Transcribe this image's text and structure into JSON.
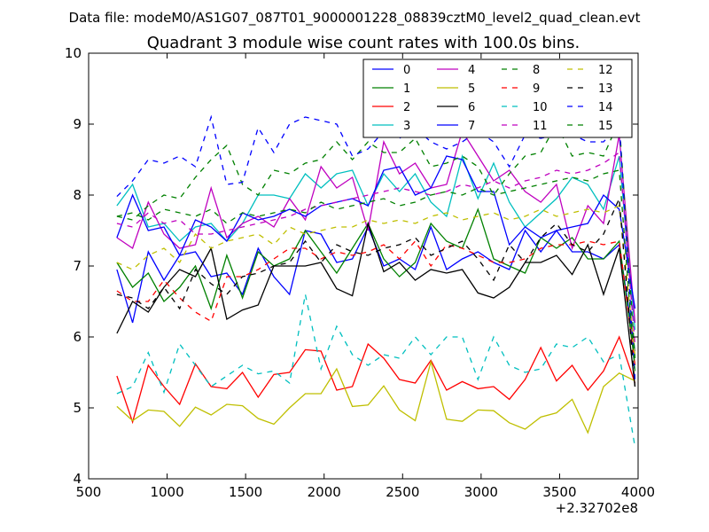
{
  "figure": {
    "suptitle": "Data file: modeM0/AS1G07_087T01_9000001228_08839cztM0_level2_quad_clean.evt",
    "offset_label": "+2.32702e8"
  },
  "chart_data": {
    "type": "line",
    "title": "Quadrant 3 module wise count rates with 100.0s bins.",
    "xlabel": "",
    "ylabel": "",
    "xlim": [
      500,
      4000
    ],
    "ylim": [
      4,
      10
    ],
    "x_offset": 232702000,
    "xticks": [
      "500",
      "1000",
      "1500",
      "2000",
      "2500",
      "3000",
      "3500",
      "4000"
    ],
    "yticks": [
      "4",
      "5",
      "6",
      "7",
      "8",
      "9",
      "10"
    ],
    "grid": false,
    "legend_position": "top-right",
    "x": [
      680,
      780,
      880,
      980,
      1080,
      1180,
      1280,
      1380,
      1480,
      1580,
      1680,
      1780,
      1880,
      1980,
      2080,
      2180,
      2280,
      2380,
      2480,
      2580,
      2680,
      2780,
      2880,
      2980,
      3080,
      3180,
      3280,
      3380,
      3480,
      3580,
      3680,
      3780,
      3880,
      3980
    ],
    "series": [
      {
        "name": "0",
        "color": "#0000ff",
        "dash": "solid",
        "values": [
          6.95,
          6.2,
          7.2,
          6.8,
          7.15,
          7.2,
          6.85,
          6.9,
          6.6,
          7.25,
          6.85,
          6.6,
          7.5,
          7.45,
          7.05,
          7.1,
          7.55,
          7.0,
          7.1,
          6.95,
          7.55,
          6.95,
          7.1,
          7.2,
          7.05,
          6.95,
          7.5,
          7.2,
          7.5,
          7.2,
          7.2,
          7.1,
          7.3,
          5.8
        ]
      },
      {
        "name": "1",
        "color": "#008000",
        "dash": "solid",
        "values": [
          7.05,
          6.7,
          6.9,
          6.5,
          6.7,
          7.0,
          6.4,
          7.15,
          6.55,
          7.2,
          7.0,
          7.1,
          7.5,
          7.2,
          6.9,
          7.25,
          7.6,
          7.1,
          6.85,
          7.05,
          7.6,
          7.35,
          7.25,
          7.8,
          7.1,
          7.0,
          6.9,
          7.4,
          7.25,
          7.4,
          7.1,
          7.1,
          7.35,
          5.6
        ]
      },
      {
        "name": "2",
        "color": "#ff0000",
        "dash": "solid",
        "values": [
          5.45,
          4.8,
          5.6,
          5.3,
          5.05,
          5.62,
          5.3,
          5.27,
          5.5,
          5.15,
          5.47,
          5.5,
          5.82,
          5.8,
          5.25,
          5.3,
          5.9,
          5.7,
          5.4,
          5.35,
          5.67,
          5.25,
          5.37,
          5.27,
          5.3,
          5.12,
          5.4,
          5.85,
          5.38,
          5.6,
          5.25,
          5.52,
          6.0,
          5.35
        ]
      },
      {
        "name": "3",
        "color": "#00bfbf",
        "dash": "solid",
        "values": [
          7.85,
          8.15,
          7.55,
          7.6,
          7.35,
          7.55,
          7.6,
          7.35,
          7.6,
          8.0,
          8.0,
          7.95,
          8.3,
          8.1,
          8.3,
          8.35,
          7.85,
          8.3,
          8.05,
          8.3,
          7.9,
          7.7,
          8.55,
          7.95,
          8.45,
          7.9,
          7.55,
          7.75,
          7.95,
          8.25,
          8.15,
          7.8,
          8.55,
          6.1
        ]
      },
      {
        "name": "4",
        "color": "#bf00bf",
        "dash": "solid",
        "values": [
          7.4,
          7.25,
          7.9,
          7.45,
          7.25,
          7.3,
          8.1,
          7.4,
          7.6,
          7.7,
          7.55,
          7.95,
          7.65,
          8.4,
          8.1,
          8.25,
          7.5,
          8.75,
          8.3,
          8.45,
          8.1,
          8.15,
          8.9,
          8.55,
          8.2,
          8.35,
          8.05,
          7.9,
          8.15,
          7.25,
          7.85,
          7.6,
          8.85,
          6.2
        ]
      },
      {
        "name": "5",
        "color": "#bfbf00",
        "dash": "solid",
        "values": [
          5.02,
          4.82,
          4.97,
          4.95,
          4.74,
          5.01,
          4.9,
          5.05,
          5.03,
          4.85,
          4.77,
          5.0,
          5.2,
          5.2,
          5.55,
          5.02,
          5.04,
          5.31,
          4.97,
          4.82,
          5.65,
          4.84,
          4.81,
          4.97,
          4.96,
          4.79,
          4.7,
          4.87,
          4.93,
          5.12,
          4.65,
          5.3,
          5.49,
          5.38
        ]
      },
      {
        "name": "6",
        "color": "#000000",
        "dash": "solid",
        "values": [
          6.05,
          6.5,
          6.35,
          6.7,
          6.95,
          6.85,
          7.25,
          6.25,
          6.38,
          6.45,
          7.0,
          7.0,
          7.0,
          7.05,
          6.68,
          6.58,
          7.6,
          6.92,
          7.05,
          6.8,
          6.95,
          6.9,
          6.95,
          6.62,
          6.55,
          6.7,
          7.05,
          7.05,
          7.15,
          6.88,
          7.3,
          6.6,
          7.25,
          5.3
        ]
      },
      {
        "name": "7",
        "color": "#0000ff",
        "dash": "solid",
        "values": [
          7.4,
          8.0,
          7.5,
          7.55,
          7.15,
          7.65,
          7.55,
          7.35,
          7.75,
          7.65,
          7.7,
          7.8,
          7.7,
          7.85,
          7.9,
          7.95,
          7.85,
          8.35,
          8.4,
          8.0,
          8.1,
          8.55,
          8.5,
          8.05,
          8.05,
          7.3,
          7.55,
          7.4,
          7.5,
          7.55,
          7.6,
          8.0,
          7.8,
          6.4
        ]
      },
      {
        "name": "8",
        "color": "#008000",
        "dash": "dashed",
        "values": [
          7.7,
          7.65,
          7.85,
          8.0,
          7.95,
          8.25,
          8.5,
          8.7,
          8.15,
          8.0,
          8.35,
          8.3,
          8.45,
          8.5,
          8.75,
          8.5,
          8.75,
          8.6,
          8.6,
          8.8,
          8.4,
          8.45,
          8.55,
          8.4,
          8.0,
          8.3,
          8.55,
          8.6,
          9.0,
          8.55,
          8.6,
          8.55,
          9.05,
          5.7
        ]
      },
      {
        "name": "9",
        "color": "#ff0000",
        "dash": "dashed",
        "values": [
          6.65,
          6.5,
          6.5,
          6.8,
          6.55,
          6.35,
          6.22,
          6.85,
          6.85,
          6.95,
          7.1,
          7.25,
          7.25,
          7.1,
          7.2,
          7.15,
          7.2,
          7.3,
          7.1,
          7.35,
          7.0,
          7.3,
          7.25,
          7.15,
          7.05,
          7.05,
          7.1,
          7.25,
          7.3,
          7.3,
          7.35,
          7.3,
          7.35,
          5.6
        ]
      },
      {
        "name": "10",
        "color": "#00bfbf",
        "dash": "dashed",
        "values": [
          5.2,
          5.3,
          5.78,
          5.22,
          5.9,
          5.6,
          5.3,
          5.45,
          5.6,
          5.48,
          5.52,
          5.35,
          6.6,
          5.55,
          6.15,
          5.75,
          5.6,
          5.75,
          5.7,
          6.0,
          5.75,
          6.0,
          6.0,
          5.4,
          6.0,
          5.6,
          5.5,
          5.55,
          5.9,
          5.85,
          6.0,
          5.65,
          5.75,
          4.45
        ]
      },
      {
        "name": "11",
        "color": "#bf00bf",
        "dash": "dashed",
        "values": [
          7.6,
          7.55,
          7.75,
          7.6,
          7.65,
          7.45,
          7.45,
          7.5,
          7.55,
          7.6,
          7.65,
          7.7,
          7.8,
          7.85,
          7.9,
          7.95,
          8.0,
          8.05,
          8.1,
          8.05,
          8.0,
          8.05,
          8.15,
          8.1,
          8.2,
          8.1,
          8.2,
          8.25,
          8.35,
          8.3,
          8.35,
          8.45,
          8.6,
          5.9
        ]
      },
      {
        "name": "12",
        "color": "#bfbf00",
        "dash": "dashed",
        "values": [
          7.05,
          6.95,
          7.15,
          7.25,
          7.05,
          7.45,
          7.25,
          7.35,
          7.4,
          7.45,
          7.3,
          7.55,
          7.45,
          7.5,
          7.55,
          7.55,
          7.65,
          7.6,
          7.65,
          7.6,
          7.7,
          7.75,
          7.65,
          7.7,
          7.75,
          7.65,
          7.7,
          7.8,
          7.7,
          7.75,
          7.8,
          7.75,
          7.85,
          5.75
        ]
      },
      {
        "name": "13",
        "color": "#000000",
        "dash": "dashed",
        "values": [
          6.6,
          6.55,
          6.4,
          6.7,
          6.4,
          6.95,
          6.75,
          6.6,
          6.85,
          6.9,
          7.0,
          7.05,
          7.35,
          7.05,
          7.3,
          7.2,
          7.15,
          7.25,
          7.3,
          7.4,
          7.15,
          7.25,
          7.35,
          7.1,
          6.8,
          7.3,
          7.05,
          7.4,
          7.6,
          7.3,
          7.2,
          7.45,
          7.95,
          5.3
        ]
      },
      {
        "name": "14",
        "color": "#0000ff",
        "dash": "dashed",
        "values": [
          7.98,
          8.2,
          8.5,
          8.45,
          8.55,
          8.4,
          9.1,
          8.15,
          8.18,
          8.95,
          8.6,
          9.0,
          9.1,
          9.05,
          9.0,
          8.55,
          8.65,
          8.9,
          8.8,
          8.95,
          8.75,
          8.65,
          8.75,
          8.9,
          8.75,
          8.4,
          8.85,
          8.8,
          8.85,
          8.85,
          8.75,
          8.75,
          9.0,
          5.4
        ]
      },
      {
        "name": "15",
        "color": "#008000",
        "dash": "dashed",
        "values": [
          7.7,
          7.75,
          7.65,
          7.8,
          7.75,
          7.7,
          7.8,
          7.6,
          7.75,
          7.7,
          7.75,
          7.8,
          7.75,
          7.9,
          7.8,
          7.85,
          7.9,
          7.95,
          7.85,
          7.9,
          8.0,
          8.05,
          8.0,
          8.1,
          8.0,
          8.05,
          8.1,
          8.15,
          8.2,
          8.25,
          8.2,
          8.3,
          8.35,
          5.5
        ]
      }
    ]
  }
}
